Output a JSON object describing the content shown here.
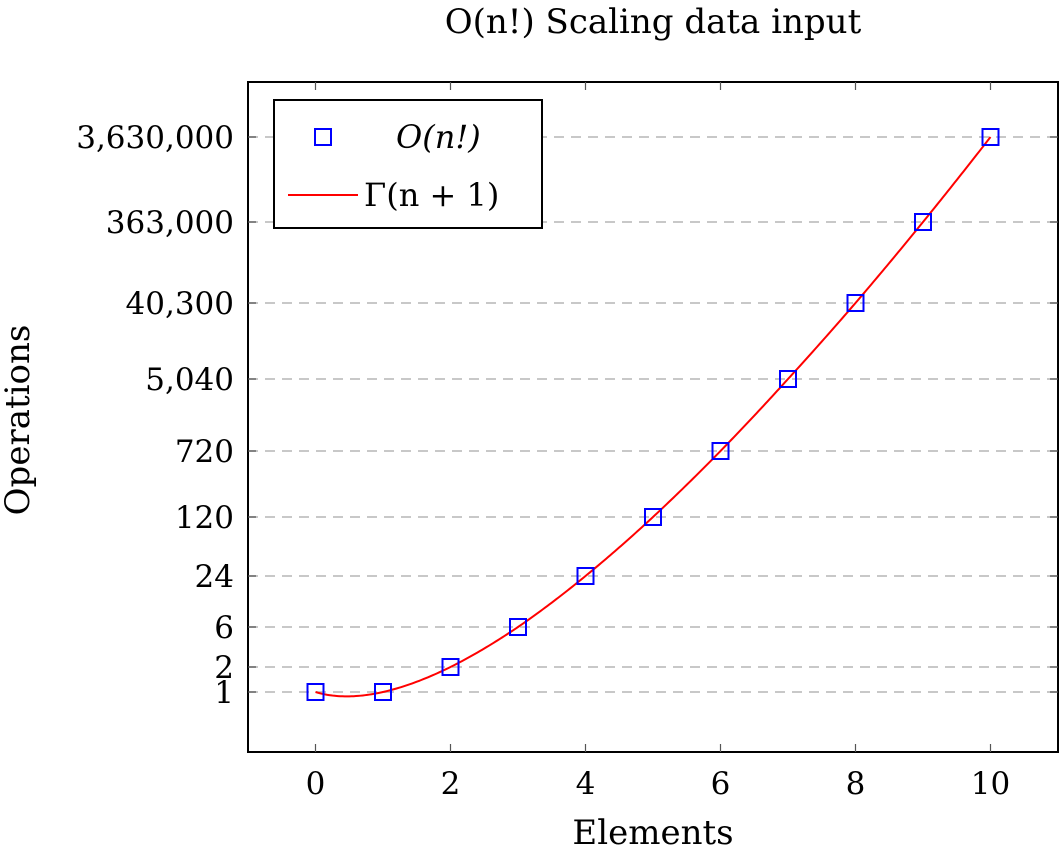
{
  "chart_data": {
    "type": "scatter",
    "title": "O(n!) Scaling data input",
    "xlabel": "Elements",
    "ylabel": "Operations",
    "xlim": [
      -1,
      11
    ],
    "xticks": [
      0,
      2,
      4,
      6,
      8,
      10
    ],
    "y_scale": "log",
    "ylim": [
      0.2,
      20000000
    ],
    "yticks": [
      1,
      2,
      6,
      24,
      120,
      720,
      5040,
      40300,
      363000,
      3630000
    ],
    "ytick_labels": [
      "1",
      "2",
      "6",
      "24",
      "120",
      "720",
      "5,040",
      "40,300",
      "363,000",
      "3,630,000"
    ],
    "grid": "horizontal dashed at y ticks",
    "legend_position": "top-left",
    "series": [
      {
        "name": "O(n!)",
        "kind": "markers",
        "marker": "square",
        "color": "#0000ff",
        "x": [
          0,
          1,
          2,
          3,
          4,
          5,
          6,
          7,
          8,
          9,
          10
        ],
        "y": [
          1,
          1,
          2,
          6,
          24,
          120,
          720,
          5040,
          40300,
          363000,
          3630000
        ]
      },
      {
        "name": "Γ(n + 1)",
        "kind": "line",
        "color": "#ff0000",
        "x_range": [
          0,
          10
        ]
      }
    ]
  }
}
